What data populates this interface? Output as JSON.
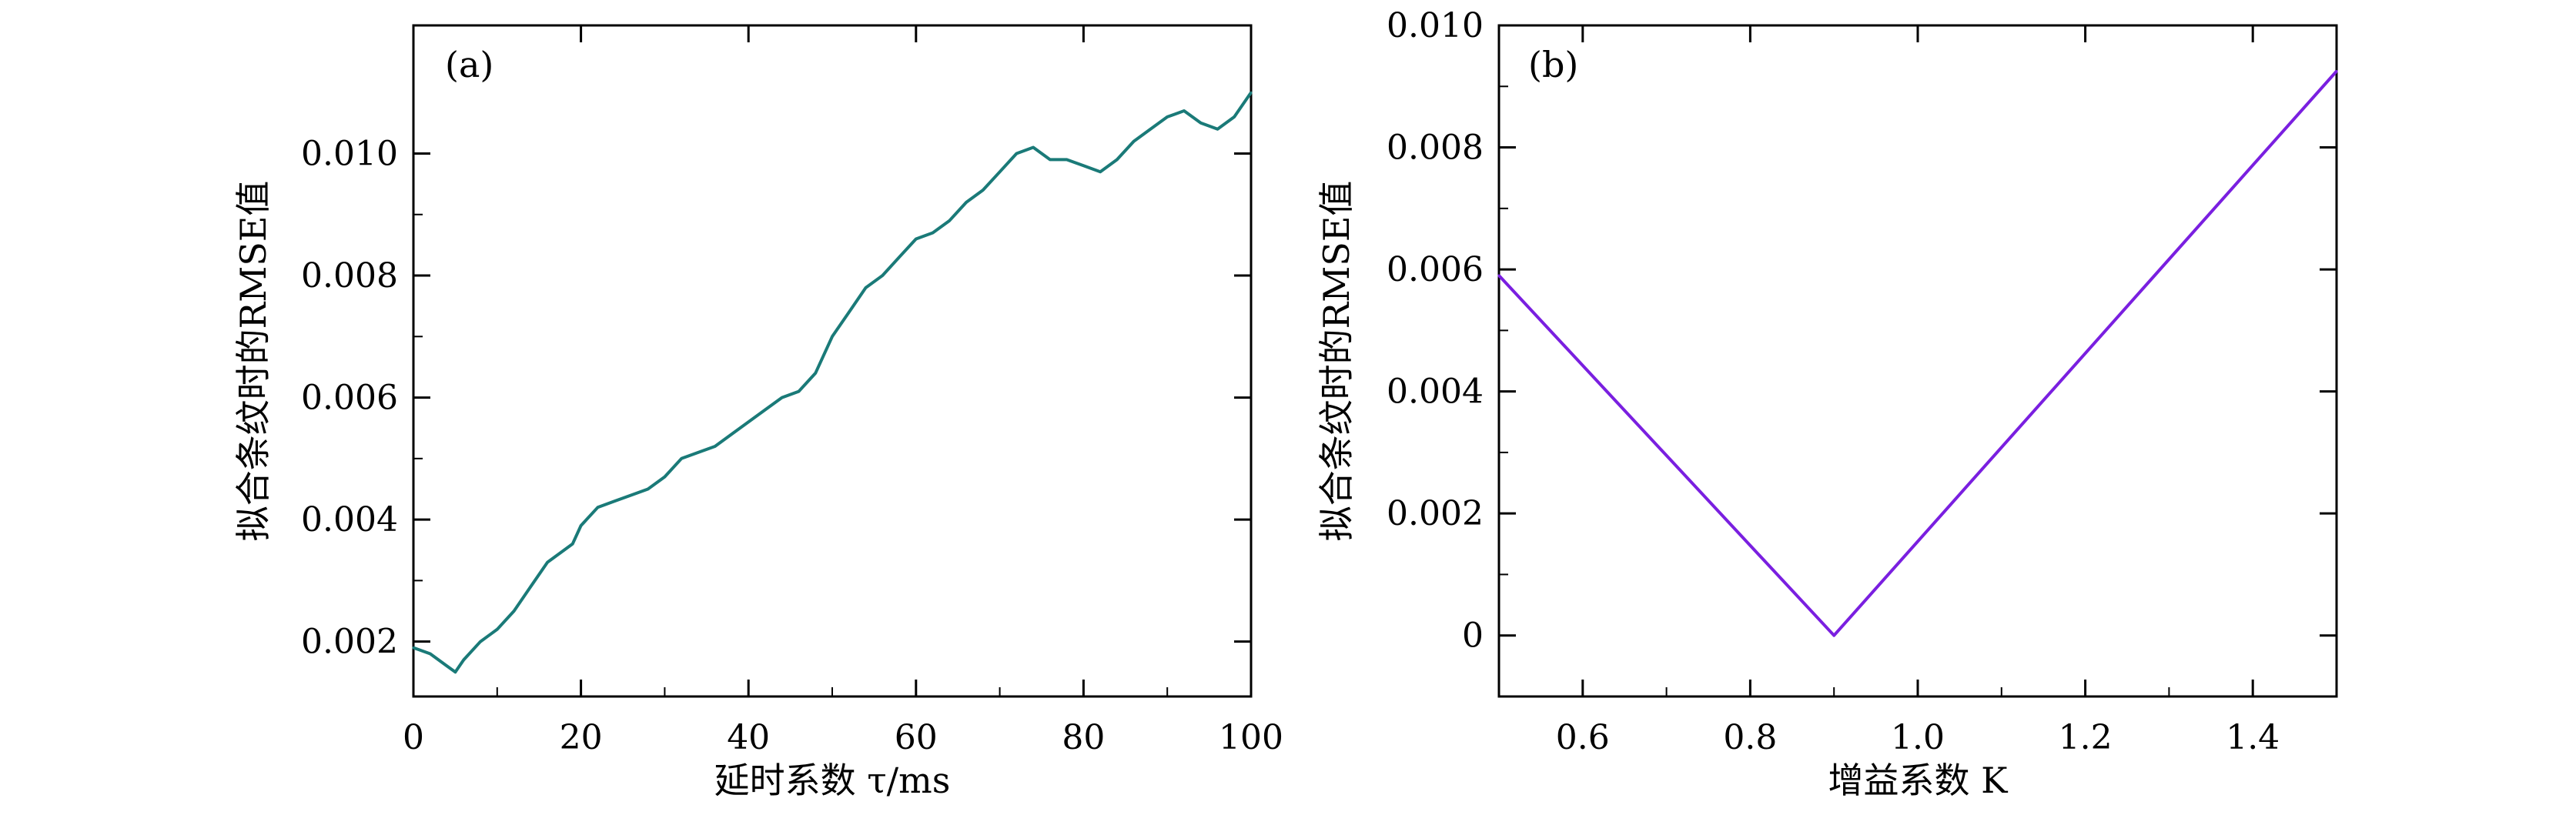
{
  "chart_data": [
    {
      "type": "line",
      "panel_label": "(a)",
      "xlabel": "延时系数 τ/ms",
      "ylabel": "拟合条纹时的RMSE值",
      "xlim": [
        0,
        100
      ],
      "ylim": [
        0.0011,
        0.0121
      ],
      "xticks": [
        0,
        20,
        40,
        60,
        80,
        100
      ],
      "xtick_labels": [
        "0",
        "20",
        "40",
        "60",
        "80",
        "100"
      ],
      "yticks": [
        0.002,
        0.004,
        0.006,
        0.008,
        0.01
      ],
      "ytick_labels": [
        "0.002",
        "0.004",
        "0.006",
        "0.008",
        "0.010"
      ],
      "grid": false,
      "color": "#1a7a78",
      "series": [
        {
          "x": [
            0,
            2,
            4,
            5,
            6,
            8,
            10,
            12,
            14,
            16,
            18,
            19,
            20,
            22,
            24,
            26,
            28,
            30,
            32,
            34,
            36,
            38,
            40,
            42,
            44,
            46,
            48,
            50,
            52,
            54,
            56,
            58,
            60,
            62,
            64,
            66,
            68,
            70,
            72,
            74,
            76,
            78,
            80,
            82,
            84,
            86,
            88,
            90,
            92,
            94,
            96,
            98,
            100
          ],
          "values": [
            0.0019,
            0.0018,
            0.0016,
            0.0015,
            0.0017,
            0.002,
            0.0022,
            0.0025,
            0.0029,
            0.0033,
            0.0035,
            0.0036,
            0.0039,
            0.0042,
            0.0043,
            0.0044,
            0.0045,
            0.0047,
            0.005,
            0.0051,
            0.0052,
            0.0054,
            0.0056,
            0.0058,
            0.006,
            0.0061,
            0.0064,
            0.007,
            0.0074,
            0.0078,
            0.008,
            0.0083,
            0.0086,
            0.0087,
            0.0089,
            0.0092,
            0.0094,
            0.0097,
            0.01,
            0.0101,
            0.0099,
            0.0099,
            0.0098,
            0.0097,
            0.0099,
            0.0102,
            0.0104,
            0.0106,
            0.0107,
            0.0105,
            0.0104,
            0.0106,
            0.011
          ]
        }
      ]
    },
    {
      "type": "line",
      "panel_label": "(b)",
      "xlabel": "增益系数 K",
      "ylabel": "拟合条纹时的RMSE值",
      "xlim": [
        0.5,
        1.5
      ],
      "ylim": [
        -0.001,
        0.01
      ],
      "xticks": [
        0.6,
        0.8,
        1.0,
        1.2,
        1.4
      ],
      "xtick_labels": [
        "0.6",
        "0.8",
        "1.0",
        "1.2",
        "1.4"
      ],
      "yticks": [
        0,
        0.002,
        0.004,
        0.006,
        0.008,
        0.01
      ],
      "ytick_labels": [
        "0",
        "0.002",
        "0.004",
        "0.006",
        "0.008",
        "0.010"
      ],
      "grid": false,
      "color": "#7a1fe0",
      "series": [
        {
          "x": [
            0.5,
            0.9,
            1.5
          ],
          "values": [
            0.0059,
            0.0,
            0.00925
          ]
        }
      ]
    }
  ]
}
